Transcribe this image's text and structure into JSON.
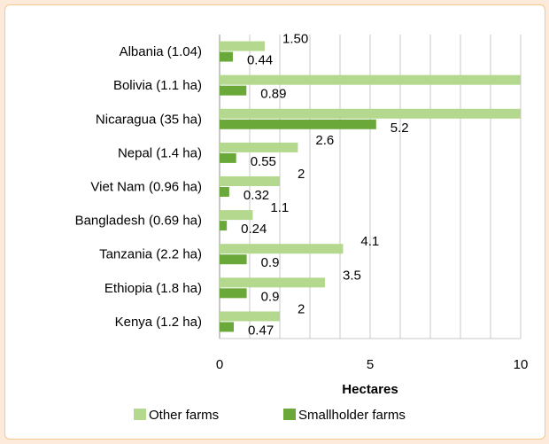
{
  "chart_data": {
    "type": "bar",
    "orientation": "horizontal",
    "categories": [
      "Albania (1.04)",
      "Bolivia (1.1 ha)",
      "Nicaragua (35 ha)",
      "Nepal (1.4 ha)",
      "Viet Nam (0.96 ha)",
      "Bangladesh (0.69 ha)",
      "Tanzania (2.2 ha)",
      "Ethiopia (1.8 ha)",
      "Kenya (1.2 ha)"
    ],
    "series": [
      {
        "name": "Other farms",
        "color": "#b3d88e",
        "values": [
          1.5,
          10,
          10,
          2.6,
          2,
          1.1,
          4.1,
          3.5,
          2
        ],
        "labels": [
          "1.50",
          "",
          "",
          "2.6",
          "2",
          "1.1",
          "4.1",
          "3.5",
          "2"
        ]
      },
      {
        "name": "Smallholder farms",
        "color": "#6aa83a",
        "values": [
          0.44,
          0.89,
          5.2,
          0.55,
          0.32,
          0.24,
          0.9,
          0.9,
          0.47
        ],
        "labels": [
          "0.44",
          "0.89",
          "5.2",
          "0.55",
          "0.32",
          "0.24",
          "0.9",
          "0.9",
          "0.47"
        ]
      }
    ],
    "xlabel": "Hectares",
    "ylabel": "",
    "title": "",
    "xlim": [
      0,
      10
    ],
    "xticks": [
      "0",
      "5",
      "10"
    ],
    "grid": "vertical gridlines at every 1",
    "legend_position": "bottom"
  }
}
